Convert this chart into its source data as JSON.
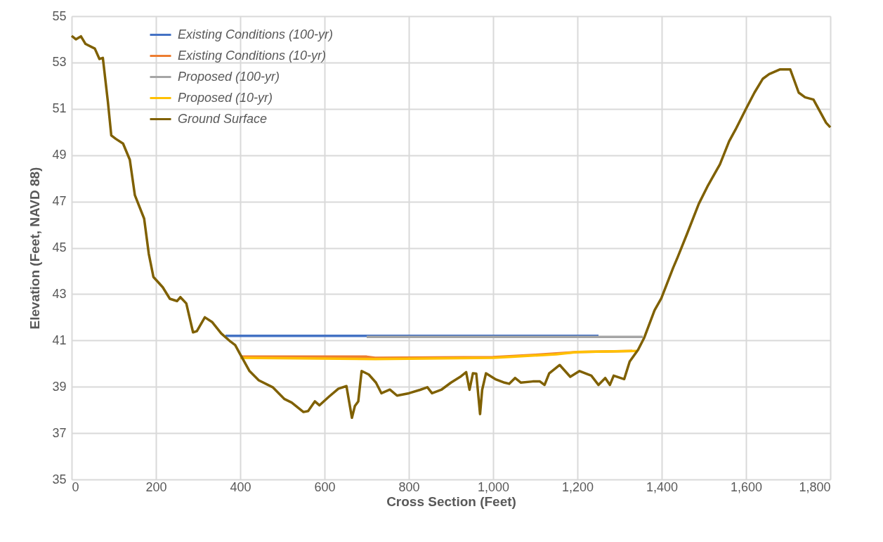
{
  "chart_data": {
    "type": "line",
    "xlabel": "Cross Section (Feet)",
    "ylabel": "Elevation (Feet, NAVD 88)",
    "xlim": [
      0,
      1800
    ],
    "ylim": [
      35,
      55
    ],
    "xticks": [
      0,
      200,
      400,
      600,
      800,
      {
        "value": 1000,
        "label": "1,000"
      },
      {
        "value": 1200,
        "label": "1,200"
      },
      {
        "value": 1400,
        "label": "1,400"
      },
      {
        "value": 1600,
        "label": "1,600"
      },
      {
        "value": 1800,
        "label": "1,800"
      }
    ],
    "yticks": [
      35,
      37,
      39,
      41,
      43,
      45,
      47,
      49,
      51,
      53,
      55
    ],
    "grid": true,
    "legend": "top left",
    "marker": "none",
    "line_style": "solid",
    "series": [
      {
        "name": "Existing Conditions (100-yr)",
        "color": "#4472c4",
        "x": [
          365,
          1250
        ],
        "values": [
          41.2,
          41.2
        ]
      },
      {
        "name": "Existing Conditions (10-yr)",
        "color": "#ed7d31",
        "x": [
          400,
          700,
          720,
          1000,
          1100,
          1200,
          1330
        ],
        "values": [
          40.3,
          40.3,
          40.25,
          40.28,
          40.38,
          40.5,
          40.55
        ]
      },
      {
        "name": "Proposed (100-yr)",
        "color": "#a5a5a5",
        "x": [
          700,
          1355
        ],
        "values": [
          41.15,
          41.15
        ]
      },
      {
        "name": "Proposed (10-yr)",
        "color": "#ffc000",
        "x": [
          400,
          720,
          1000,
          1150,
          1200,
          1340
        ],
        "values": [
          40.25,
          40.2,
          40.25,
          40.4,
          40.5,
          40.55
        ]
      },
      {
        "name": "Ground Surface",
        "color": "#7f6000",
        "x": [
          0,
          10,
          22,
          33,
          55,
          66,
          74,
          86,
          94,
          105,
          122,
          138,
          150,
          172,
          183,
          194,
          216,
          233,
          250,
          258,
          272,
          288,
          297,
          316,
          333,
          355,
          377,
          388,
          400,
          422,
          444,
          477,
          505,
          522,
          550,
          561,
          577,
          588,
          611,
          633,
          652,
          665,
          672,
          680,
          688,
          705,
          722,
          735,
          755,
          772,
          800,
          827,
          844,
          855,
          877,
          900,
          922,
          936,
          944,
          952,
          960,
          969,
          974,
          983,
          1005,
          1027,
          1038,
          1052,
          1066,
          1094,
          1111,
          1122,
          1133,
          1158,
          1183,
          1205,
          1233,
          1250,
          1266,
          1277,
          1286,
          1311,
          1324,
          1344,
          1358,
          1383,
          1399,
          1427,
          1438,
          1460,
          1488,
          1510,
          1538,
          1560,
          1575,
          1600,
          1620,
          1640,
          1655,
          1680,
          1705,
          1715,
          1725,
          1740,
          1760,
          1775,
          1790,
          1800
        ],
        "values": [
          54.15,
          54.0,
          54.13,
          53.8,
          53.6,
          53.15,
          53.2,
          51.3,
          49.85,
          49.7,
          49.5,
          48.8,
          47.27,
          46.26,
          44.74,
          43.74,
          43.3,
          42.8,
          42.7,
          42.87,
          42.6,
          41.35,
          41.4,
          42.0,
          41.8,
          41.3,
          40.95,
          40.8,
          40.4,
          39.68,
          39.28,
          38.98,
          38.47,
          38.32,
          37.91,
          37.95,
          38.37,
          38.2,
          38.58,
          38.92,
          39.03,
          37.66,
          38.17,
          38.37,
          39.68,
          39.53,
          39.18,
          38.72,
          38.88,
          38.62,
          38.72,
          38.87,
          38.98,
          38.72,
          38.87,
          39.18,
          39.43,
          39.63,
          38.87,
          39.58,
          39.57,
          37.82,
          38.87,
          39.58,
          39.33,
          39.18,
          39.13,
          39.38,
          39.18,
          39.23,
          39.23,
          39.08,
          39.58,
          39.94,
          39.43,
          39.68,
          39.48,
          39.08,
          39.38,
          39.08,
          39.48,
          39.33,
          40.09,
          40.6,
          41.1,
          42.3,
          42.82,
          44.13,
          44.6,
          45.6,
          46.9,
          47.7,
          48.6,
          49.6,
          50.1,
          51.0,
          51.7,
          52.3,
          52.5,
          52.7,
          52.7,
          52.2,
          51.7,
          51.5,
          51.4,
          50.9,
          50.4,
          50.2
        ]
      }
    ]
  }
}
